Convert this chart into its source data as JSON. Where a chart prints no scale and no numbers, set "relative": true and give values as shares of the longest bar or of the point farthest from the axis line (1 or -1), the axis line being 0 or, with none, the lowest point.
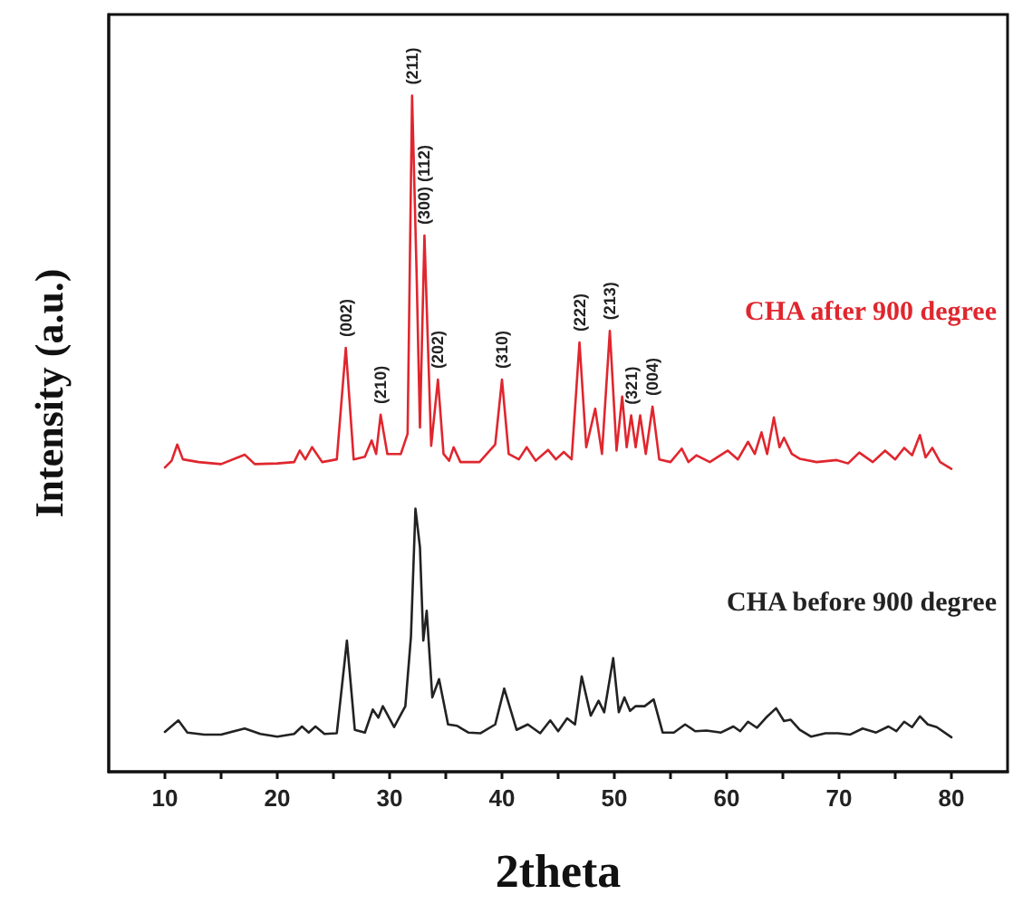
{
  "chart_data": {
    "type": "line",
    "relative": true,
    "xlabel": "2theta",
    "ylabel": "Intensity (a.u.)",
    "xlim": [
      5,
      85
    ],
    "xticks": [
      10,
      {
        "value": 15,
        "label": null
      },
      20,
      {
        "value": 25,
        "label": null
      },
      30,
      {
        "value": 35,
        "label": null
      },
      40,
      {
        "value": 45,
        "label": null
      },
      50,
      {
        "value": 55,
        "label": null
      },
      60,
      {
        "value": 65,
        "label": null
      },
      70,
      {
        "value": 75,
        "label": null
      },
      80
    ],
    "tick_labels": "x",
    "grid": false,
    "marker": "none",
    "line_style": "solid",
    "series": [
      {
        "name": "CHA after 900 degree",
        "color": "#e0262e",
        "x": [
          10,
          10.6,
          11.1,
          11.6,
          13,
          15,
          17.1,
          18,
          20,
          21.5,
          22,
          22.5,
          23.1,
          24,
          25.3,
          26.1,
          26.8,
          27.8,
          28.4,
          28.8,
          29.2,
          29.8,
          31,
          31.6,
          32,
          32.4,
          32.7,
          33.1,
          33.7,
          34.3,
          34.8,
          35.3,
          35.7,
          36.3,
          38,
          39.4,
          40,
          40.6,
          41.5,
          42.2,
          43,
          44.1,
          44.8,
          45.5,
          46.2,
          46.9,
          47.5,
          48.3,
          48.9,
          49.6,
          50.2,
          50.7,
          51.1,
          51.5,
          51.9,
          52.3,
          52.8,
          53.4,
          54,
          55,
          56,
          56.6,
          57.3,
          58.5,
          60.1,
          61,
          61.9,
          62.5,
          63.1,
          63.6,
          64.2,
          64.7,
          65.1,
          65.8,
          66.5,
          68,
          69.8,
          70.8,
          71.8,
          73,
          74.1,
          75,
          75.8,
          76.5,
          77.2,
          77.7,
          78.3,
          79,
          80
        ],
        "values": [
          0.45,
          0.46,
          0.484,
          0.462,
          0.458,
          0.455,
          0.469,
          0.455,
          0.456,
          0.458,
          0.475,
          0.462,
          0.48,
          0.458,
          0.462,
          0.627,
          0.462,
          0.466,
          0.49,
          0.47,
          0.528,
          0.47,
          0.47,
          0.5,
          1.0,
          0.739,
          0.509,
          0.793,
          0.482,
          0.58,
          0.47,
          0.46,
          0.48,
          0.458,
          0.458,
          0.484,
          0.58,
          0.47,
          0.462,
          0.48,
          0.46,
          0.476,
          0.462,
          0.473,
          0.462,
          0.635,
          0.48,
          0.537,
          0.47,
          0.652,
          0.475,
          0.555,
          0.48,
          0.527,
          0.48,
          0.527,
          0.47,
          0.54,
          0.462,
          0.458,
          0.478,
          0.458,
          0.468,
          0.458,
          0.475,
          0.462,
          0.488,
          0.47,
          0.502,
          0.47,
          0.524,
          0.48,
          0.494,
          0.47,
          0.463,
          0.458,
          0.461,
          0.456,
          0.472,
          0.458,
          0.475,
          0.462,
          0.479,
          0.468,
          0.498,
          0.465,
          0.479,
          0.458,
          0.448
        ]
      },
      {
        "name": "CHA before 900 degree",
        "color": "#222222",
        "x": [
          10,
          11.2,
          12,
          13.5,
          15,
          17.1,
          18.5,
          20,
          21.5,
          22.2,
          22.8,
          23.4,
          24.2,
          25.3,
          26.2,
          26.9,
          27.8,
          28.5,
          29,
          29.4,
          30.4,
          31.4,
          31.9,
          32.3,
          32.7,
          33,
          33.3,
          33.8,
          34.4,
          35.2,
          36,
          37,
          38.1,
          39.4,
          40.2,
          41.3,
          42.3,
          43.4,
          44.3,
          45,
          45.8,
          46.5,
          47.1,
          47.9,
          48.6,
          49.1,
          49.9,
          50.4,
          50.9,
          51.4,
          51.9,
          52.7,
          53.5,
          54.3,
          55.3,
          56.3,
          57.2,
          58.2,
          59.5,
          60.6,
          61.2,
          61.9,
          62.7,
          63.5,
          64.4,
          65.1,
          65.7,
          66.5,
          67.5,
          68.8,
          69.9,
          71,
          72.1,
          73.3,
          74.4,
          75.1,
          75.8,
          76.5,
          77.2,
          77.9,
          78.7,
          80
        ],
        "values": [
          0.059,
          0.076,
          0.058,
          0.055,
          0.055,
          0.064,
          0.056,
          0.052,
          0.056,
          0.067,
          0.058,
          0.067,
          0.056,
          0.057,
          0.194,
          0.062,
          0.058,
          0.092,
          0.08,
          0.097,
          0.066,
          0.097,
          0.2,
          0.389,
          0.332,
          0.194,
          0.238,
          0.11,
          0.137,
          0.07,
          0.068,
          0.058,
          0.057,
          0.07,
          0.123,
          0.062,
          0.07,
          0.057,
          0.076,
          0.06,
          0.079,
          0.07,
          0.141,
          0.083,
          0.105,
          0.088,
          0.168,
          0.088,
          0.11,
          0.09,
          0.097,
          0.097,
          0.107,
          0.058,
          0.058,
          0.07,
          0.06,
          0.061,
          0.058,
          0.067,
          0.06,
          0.074,
          0.065,
          0.08,
          0.094,
          0.075,
          0.077,
          0.062,
          0.052,
          0.057,
          0.057,
          0.055,
          0.064,
          0.058,
          0.067,
          0.06,
          0.074,
          0.066,
          0.082,
          0.07,
          0.066,
          0.051
        ]
      }
    ],
    "annotations": [
      {
        "text": "(002)",
        "x": 26.1,
        "y": 0.627
      },
      {
        "text": "(210)",
        "x": 29.2,
        "y": 0.528
      },
      {
        "text": "(211)",
        "x": 32.0,
        "y": 1.0
      },
      {
        "text": "(300) (112)",
        "x": 33.1,
        "y": 0.793
      },
      {
        "text": "(202)",
        "x": 34.3,
        "y": 0.58
      },
      {
        "text": "(310)",
        "x": 40.0,
        "y": 0.58
      },
      {
        "text": "(222)",
        "x": 46.9,
        "y": 0.635
      },
      {
        "text": "(213)",
        "x": 49.6,
        "y": 0.652
      },
      {
        "text": "(321)",
        "x": 51.5,
        "y": 0.527
      },
      {
        "text": "(004)",
        "x": 53.4,
        "y": 0.54
      }
    ]
  }
}
